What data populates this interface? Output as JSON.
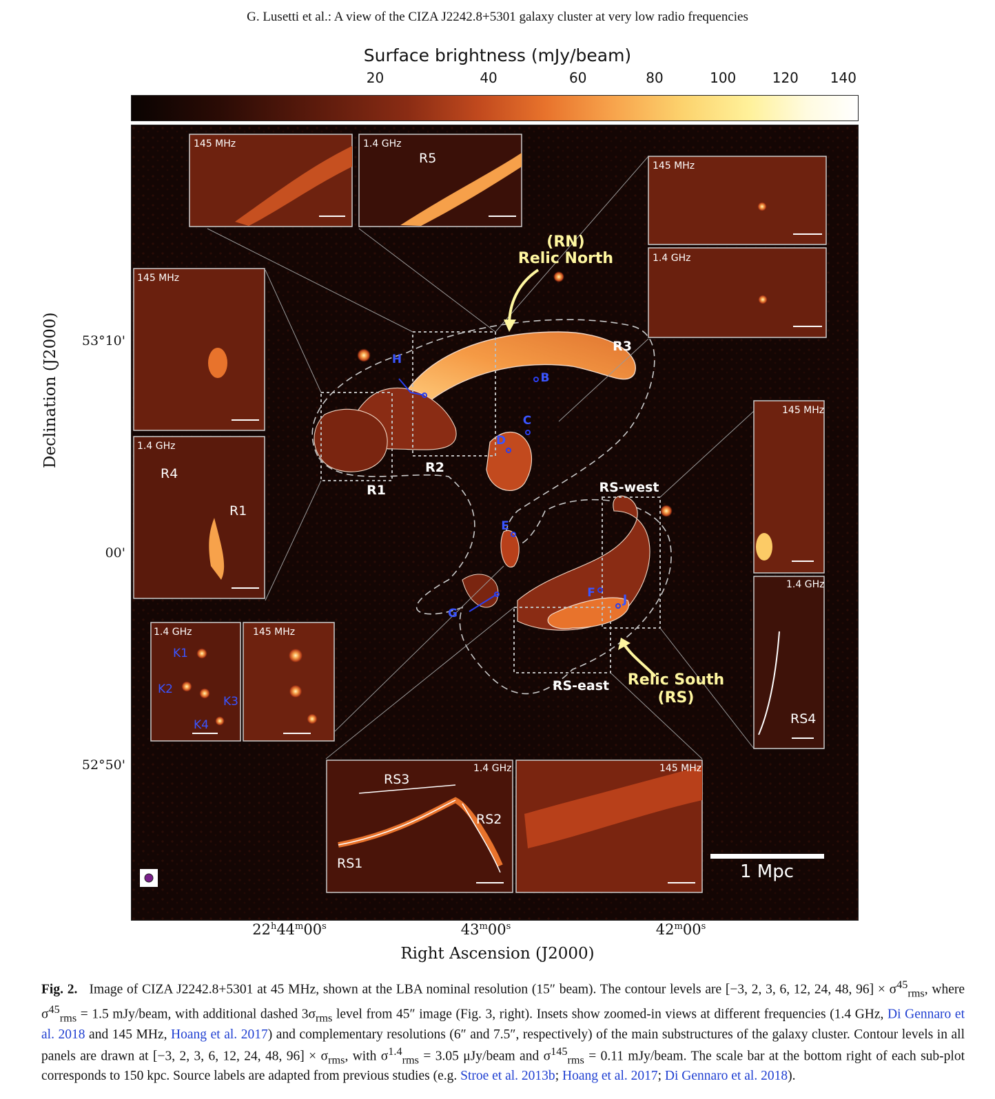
{
  "running_head": "G. Lusetti  et al.: A view of the CIZA J2242.8+5301 galaxy cluster at very low radio frequencies",
  "colorbar": {
    "title": "Surface brightness (mJy/beam)",
    "ticks": [
      "20",
      "40",
      "60",
      "80",
      "100",
      "120",
      "140"
    ],
    "tick_values": [
      20,
      40,
      60,
      80,
      100,
      120,
      140
    ],
    "range": [
      0,
      145
    ],
    "colormap": "gist_heat"
  },
  "axes": {
    "ylabel": "Declination (J2000)",
    "xlabel": "Right Ascension (J2000)",
    "yticks": [
      "53°10'",
      "00'",
      "52°50'"
    ],
    "xticks": [
      {
        "h": "22",
        "hs": "h",
        "m": "44",
        "ms": "m",
        "s": "00",
        "ss": "s"
      },
      {
        "h": "",
        "hs": "",
        "m": "43",
        "ms": "m",
        "s": "00",
        "ss": "s"
      },
      {
        "h": "",
        "hs": "",
        "m": "42",
        "ms": "m",
        "s": "00",
        "ss": "s"
      }
    ]
  },
  "map": {
    "main_labels": [
      "(RN)",
      "Relic North",
      "Relic South",
      "(RS)"
    ],
    "region_labels": [
      "R1",
      "R2",
      "R3",
      "RS-west",
      "RS-east"
    ],
    "source_labels": [
      "H",
      "B",
      "C",
      "D",
      "E",
      "F",
      "J",
      "G"
    ],
    "scale_bar": "1 Mpc",
    "colors": {
      "relic_label": "#fff7a0",
      "source_label": "#3a55ff",
      "contour": "#f3d8c6",
      "dashed": "#c9c9c9"
    }
  },
  "insets": {
    "r5_145": {
      "freq": "145 MHz",
      "labels": []
    },
    "r5_14": {
      "freq": "1.4 GHz",
      "labels": [
        "R5"
      ]
    },
    "r3_145": {
      "freq": "145 MHz",
      "labels": []
    },
    "r3_14": {
      "freq": "1.4 GHz",
      "labels": []
    },
    "r1_145": {
      "freq": "145 MHz",
      "labels": []
    },
    "r1_14": {
      "freq": "1.4 GHz",
      "labels": [
        "R4",
        "R1"
      ]
    },
    "k_14": {
      "freq": "1.4 GHz",
      "labels": [
        "K1",
        "K2",
        "K3",
        "K4"
      ]
    },
    "k_145": {
      "freq": "145 MHz",
      "labels": []
    },
    "rsw_145": {
      "freq": "145 MHz",
      "labels": []
    },
    "rsw_14": {
      "freq": "1.4 GHz",
      "labels": [
        "RS4"
      ]
    },
    "rse_14": {
      "freq": "1.4 GHz",
      "labels": [
        "RS3",
        "RS2",
        "RS1"
      ]
    },
    "rse_145": {
      "freq": "145 MHz",
      "labels": []
    }
  },
  "caption": {
    "fig": "Fig. 2.",
    "p1": "Image of CIZA J2242.8+5301 at 45 MHz, shown at the LBA nominal resolution (15″ beam). The contour levels are [−3, 2, 3, 6, 12, 24, 48, 96] × σ",
    "p2": "rms",
    "p3": ", where σ",
    "p4": " = 1.5 mJy/beam, with additional dashed 3σ",
    "p5": " level from 45″ image (Fig. 3, right). Insets show zoomed-in views at different frequencies (1.4 GHz, ",
    "ref1": "Di Gennaro et al. 2018",
    "p6": " and 145 MHz, ",
    "ref2": "Hoang et al. 2017",
    "p7": ") and complementary resolutions (6″ and 7.5″, respectively) of the main substructures of the galaxy cluster. Contour levels in all panels are drawn at [−3, 2, 3, 6, 12, 24, 48, 96] × σ",
    "p8": ", with σ",
    "p9": " = 3.05 μJy/beam and σ",
    "p10": " = 0.11 mJy/beam. The scale bar at the bottom right of each sub-plot corresponds to 150 kpc. Source labels are adapted from previous studies (e.g. ",
    "ref3": "Stroe et al. 2013b",
    "sep1": "; ",
    "ref4": "Hoang et al. 2017",
    "sep2": "; ",
    "ref5": "Di Gennaro et al. 2018",
    "end": ").",
    "sup45": "45",
    "sup14": "1.4",
    "sup145": "145"
  }
}
